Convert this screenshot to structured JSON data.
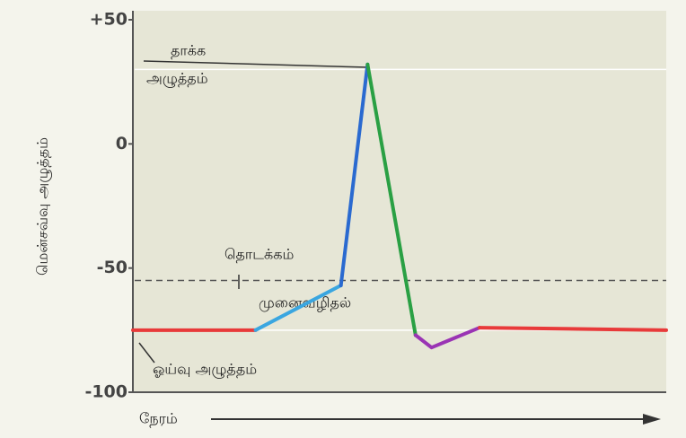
{
  "chart_data": {
    "type": "line",
    "ylabel": "மென்சவ்வு அழுத்தம்",
    "xlabel": "நேரம்",
    "ylim": [
      -100,
      50
    ],
    "yticks": [
      {
        "value": 50,
        "label": "+50"
      },
      0,
      -50,
      -100
    ],
    "xlim": [
      0,
      100
    ],
    "threshold": -55,
    "hlines": [
      30,
      -75
    ],
    "series": [
      {
        "color": "#e83a3a",
        "x": [
          0,
          23
        ],
        "values": [
          -75,
          -75
        ]
      },
      {
        "color": "#3aa6e0",
        "x": [
          23,
          39
        ],
        "values": [
          -75,
          -57
        ]
      },
      {
        "color": "#2a6ad0",
        "x": [
          39,
          44
        ],
        "values": [
          -57,
          32
        ]
      },
      {
        "color": "#2aa044",
        "x": [
          44,
          53
        ],
        "values": [
          32,
          -77
        ]
      },
      {
        "color": "#9a34b4",
        "x": [
          53,
          56,
          65
        ],
        "values": [
          -77,
          -82,
          -74
        ]
      },
      {
        "color": "#e83a3a",
        "x": [
          65,
          100
        ],
        "values": [
          -74,
          -75
        ]
      }
    ],
    "annotations": [
      "தாக்க",
      "அழுத்தம்",
      "தொடக்கம்",
      "முனைவழிதல்",
      "ஓய்வு அழுத்தம்"
    ]
  }
}
